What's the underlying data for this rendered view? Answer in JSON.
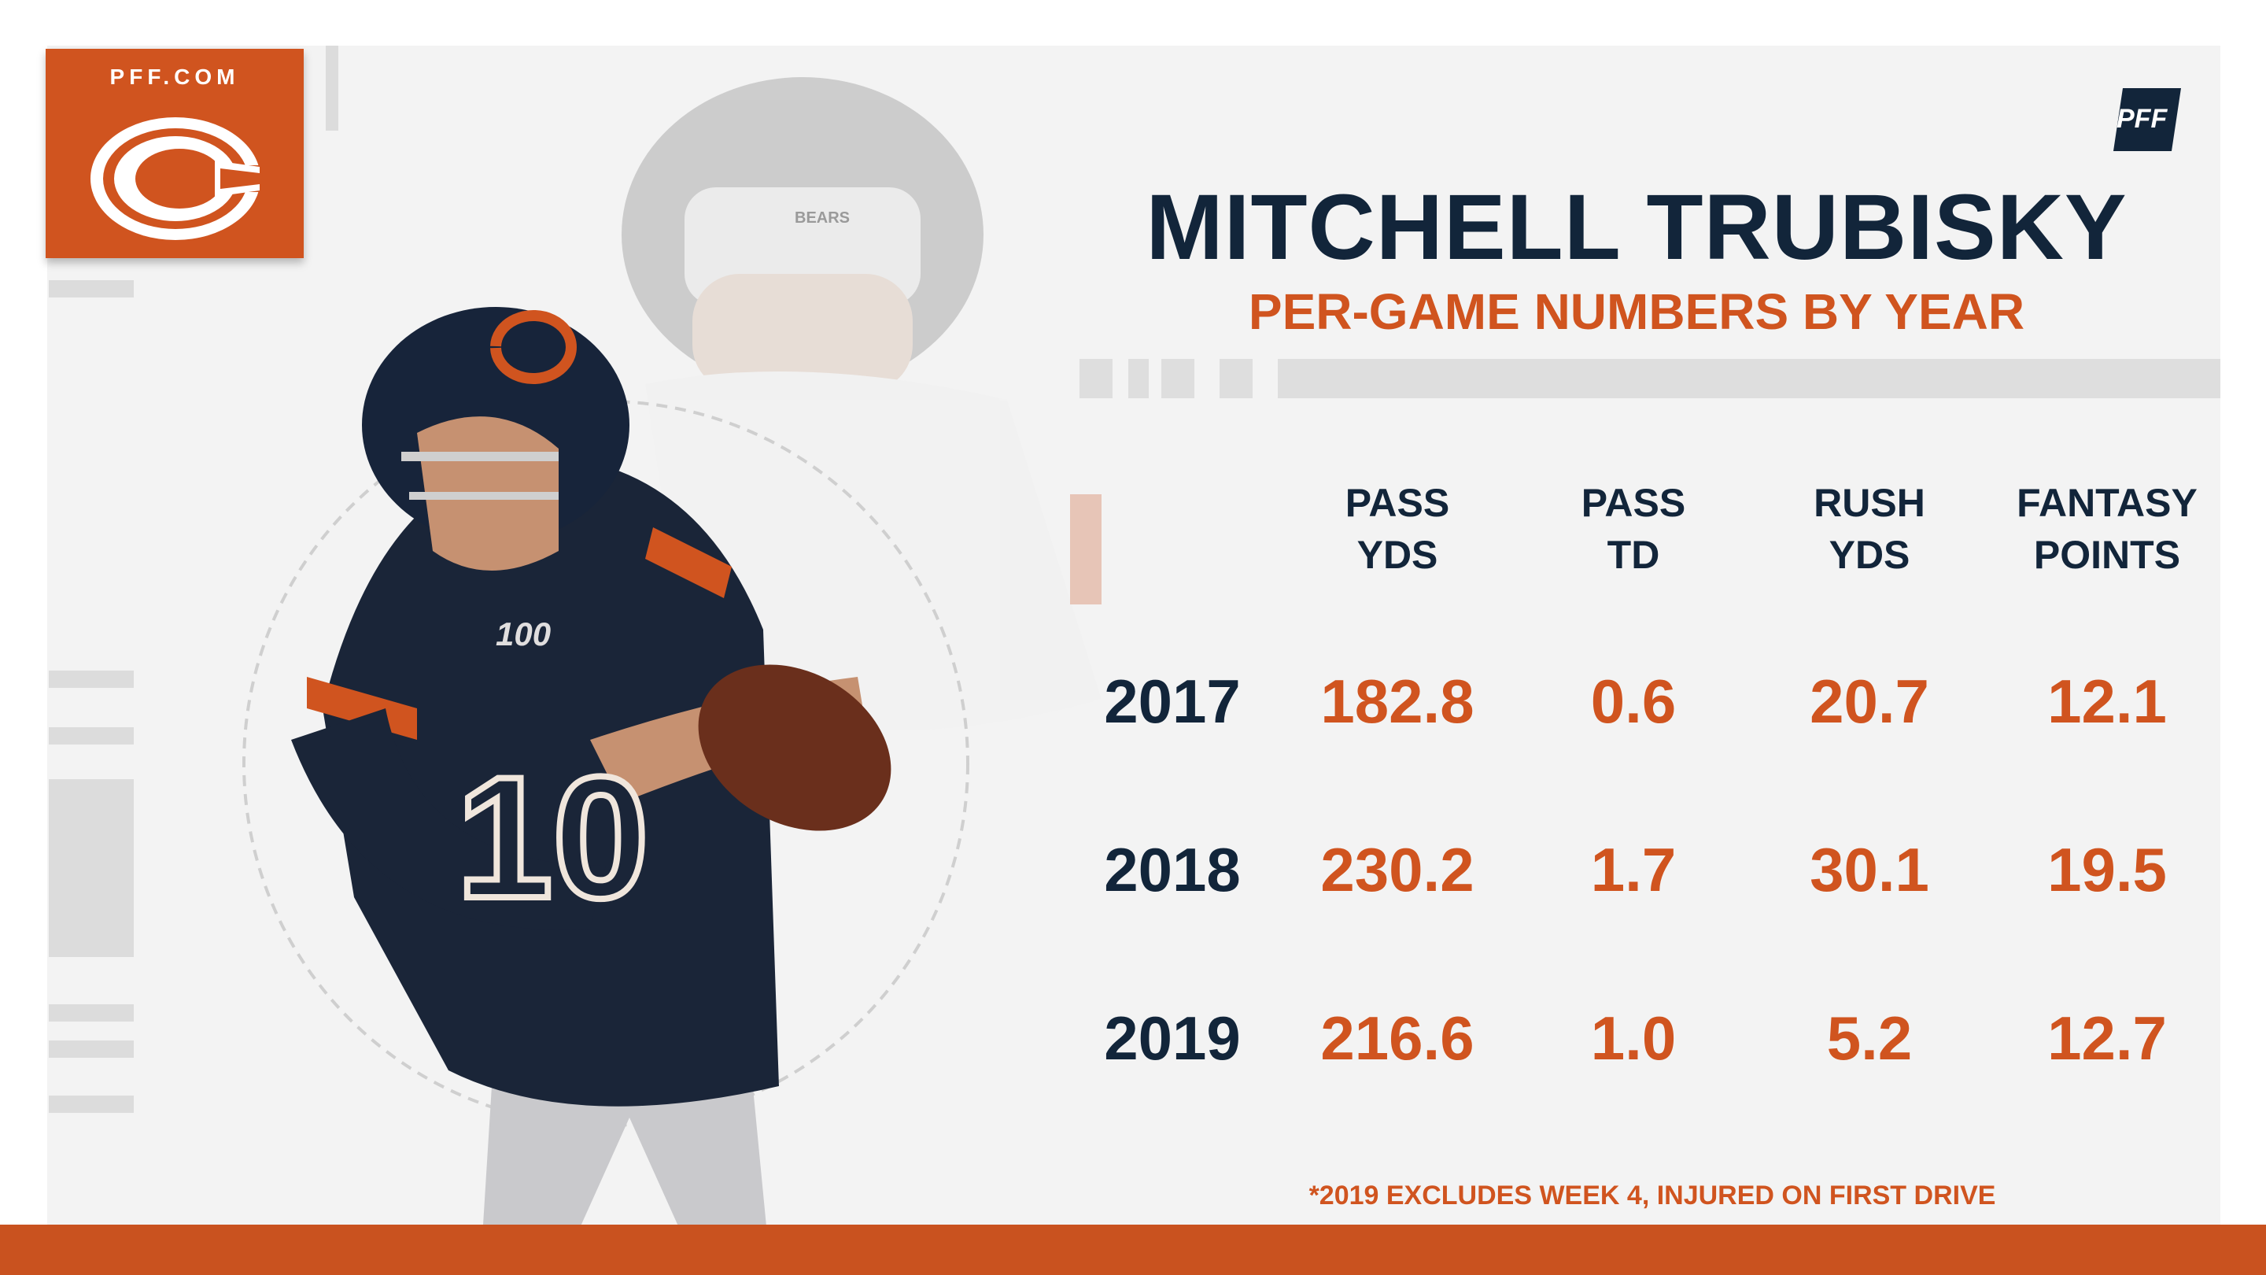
{
  "brand": {
    "site": "PFF.COM",
    "pff_mark": "PFF",
    "team_logo": "chicago-c-logo",
    "accent_color": "#d0541f",
    "navy_color": "#12253a"
  },
  "header": {
    "title": "MITCHELL TRUBISKY",
    "subtitle": "PER-GAME NUMBERS BY YEAR"
  },
  "table": {
    "columns": [
      {
        "line1": "PASS",
        "line2": "YDS"
      },
      {
        "line1": "PASS",
        "line2": "TD"
      },
      {
        "line1": "RUSH",
        "line2": "YDS"
      },
      {
        "line1": "FANTASY",
        "line2": "POINTS"
      }
    ],
    "rows": [
      {
        "year": "2017",
        "values": [
          "182.8",
          "0.6",
          "20.7",
          "12.1"
        ]
      },
      {
        "year": "2018",
        "values": [
          "230.2",
          "1.7",
          "30.1",
          "19.5"
        ]
      },
      {
        "year": "2019",
        "values": [
          "216.6",
          "1.0",
          "5.2",
          "12.7"
        ]
      }
    ]
  },
  "footnote": "*2019 EXCLUDES WEEK 4, INJURED ON FIRST DRIVE",
  "jersey_number": "10",
  "helmet_text": "BEARS",
  "centennial_patch": "100"
}
